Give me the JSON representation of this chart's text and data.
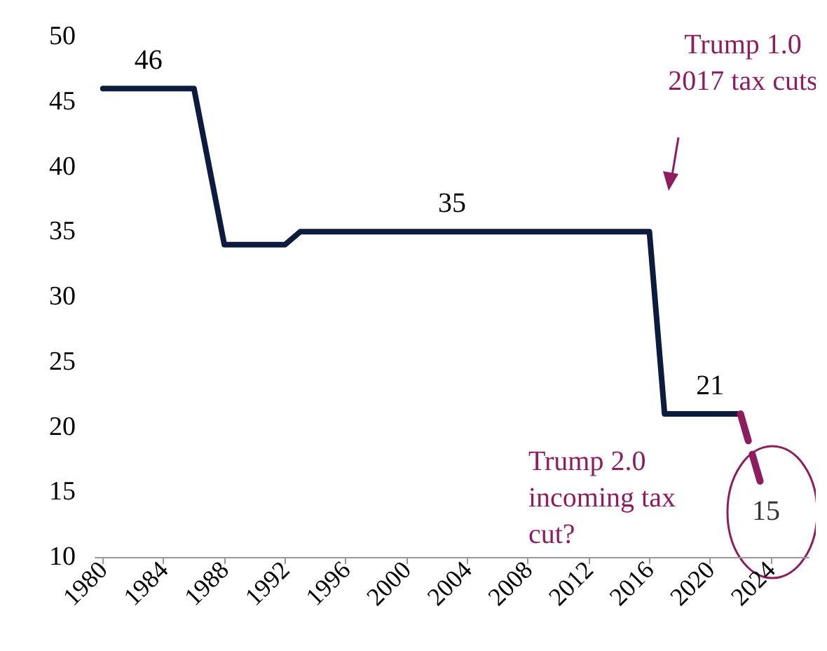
{
  "chart_data": {
    "type": "line",
    "series": [
      {
        "color": "#0d1b3e",
        "line_style": "solid",
        "x": [
          1980,
          1986,
          1987,
          1988,
          1992,
          1993,
          2016,
          2017,
          2022
        ],
        "values": [
          46,
          46,
          40,
          34,
          34,
          35,
          35,
          21,
          21
        ]
      },
      {
        "color": "#8e1c5e",
        "line_style": "dashed",
        "x": [
          2022,
          2023.5
        ],
        "values": [
          21,
          15
        ]
      }
    ],
    "xlim": [
      1979.5,
      2026.5
    ],
    "xticks": [
      1980,
      1984,
      1988,
      1992,
      1996,
      2000,
      2004,
      2008,
      2012,
      2016,
      2020,
      2024
    ],
    "ylim": [
      10,
      50
    ],
    "yticks": [
      10,
      15,
      20,
      25,
      30,
      35,
      40,
      45,
      50
    ],
    "grid": false,
    "marker": "none",
    "annotations": [
      {
        "text": "46",
        "x": 1983,
        "y": 46
      },
      {
        "text": "35",
        "x": 2003,
        "y": 35
      },
      {
        "text": "21",
        "x": 2020,
        "y": 21
      },
      {
        "text": "15",
        "x": 2023.5,
        "y": 15
      },
      "Trump 1.0\n2017 tax cuts",
      "Trump 2.0\nincoming tax\ncut?"
    ]
  }
}
